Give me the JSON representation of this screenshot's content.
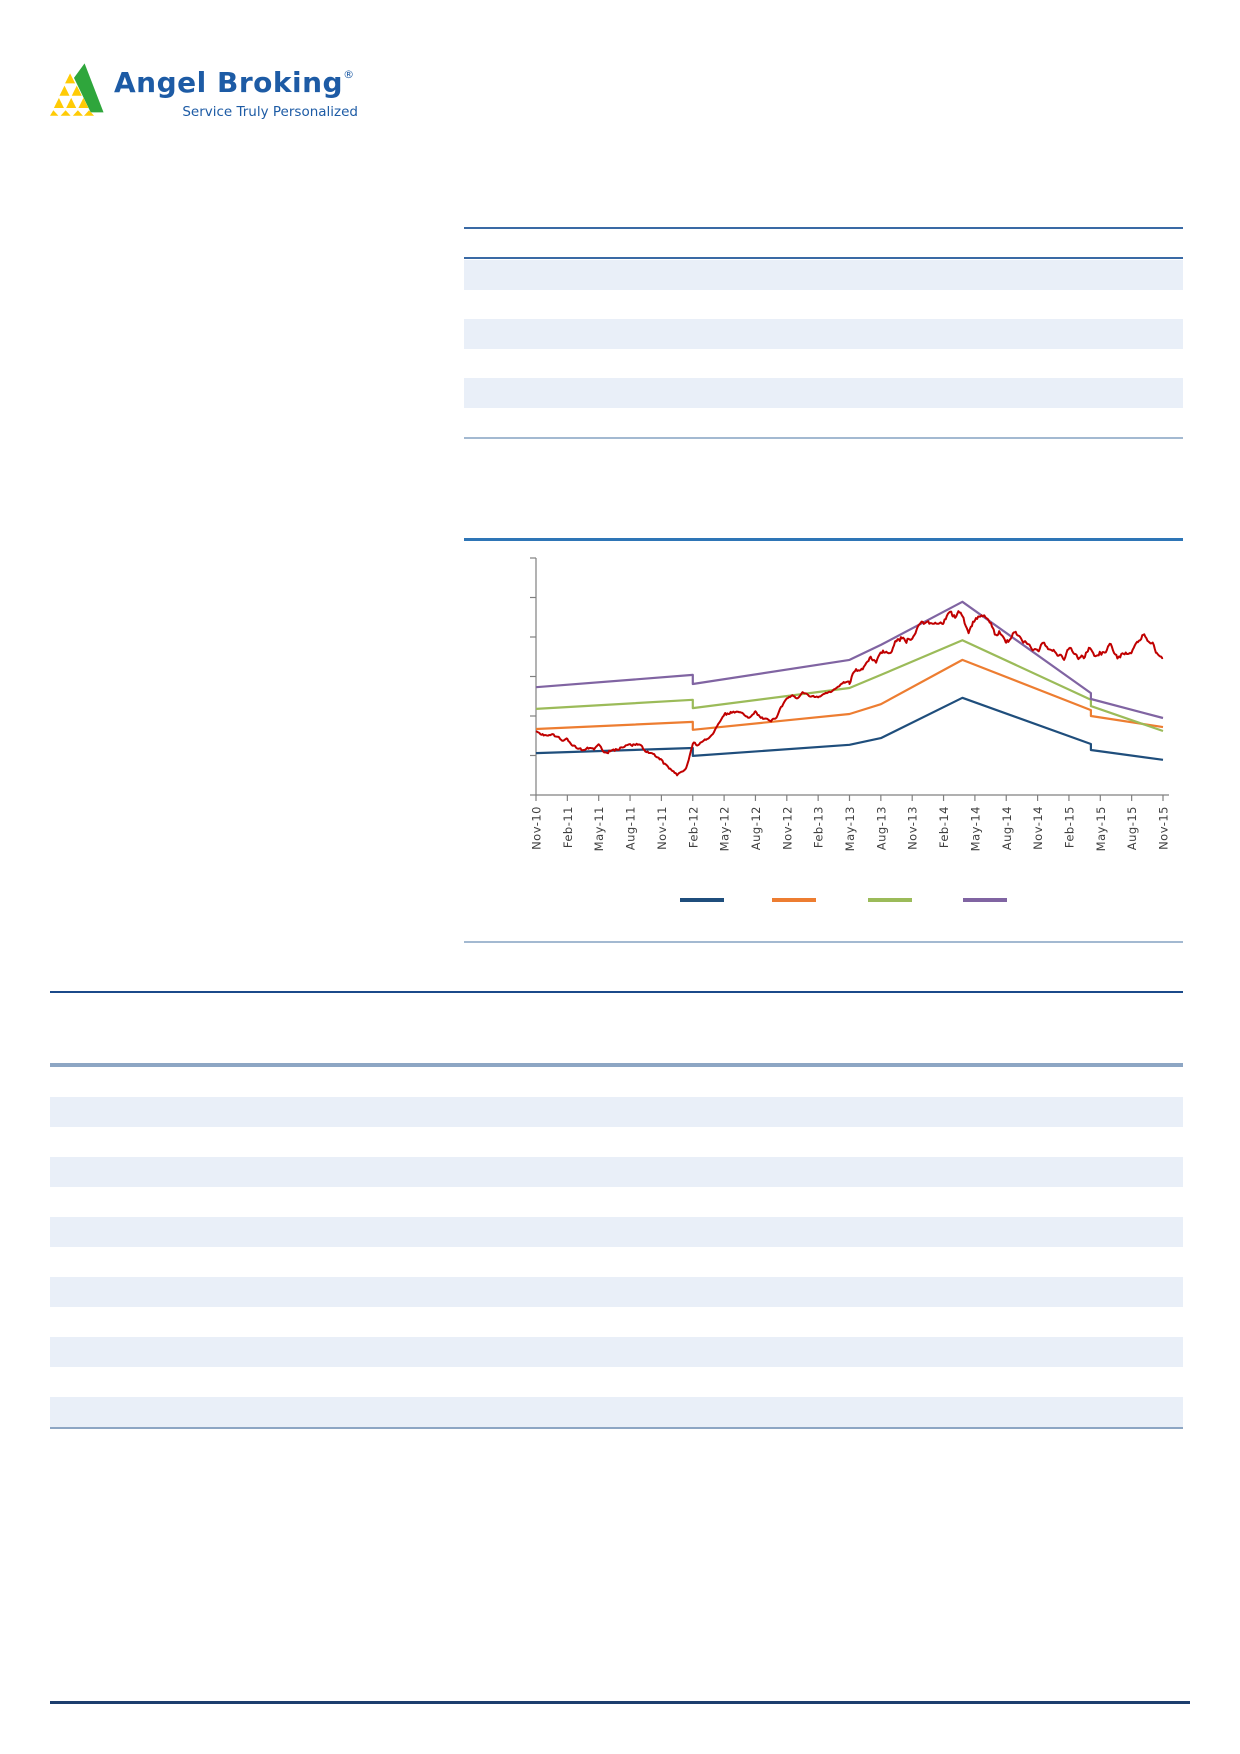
{
  "logo": {
    "brand": "Angel Broking",
    "registered": "®",
    "tagline": "Service Truly Personalized",
    "brand_color": "#1d5ba5",
    "mark_green": "#2fa63c",
    "mark_yellow": "#ffcb05"
  },
  "colors": {
    "row_shade": "#e9eff8",
    "rule_table": "#3a6aa5",
    "rule_thin_light": "#a3b9d1",
    "rule_chart_top": "#2e75b6",
    "rule_section_dark": "#1b4a8a",
    "rule_section_steel": "#8da6c4",
    "rule_footer": "#1d3e6e"
  },
  "top_table": {
    "header_row_text": "",
    "row_count": 6,
    "first_row_shaded": true
  },
  "bottom_table": {
    "header_row_text": "",
    "row_count": 11,
    "first_row_shaded": true
  },
  "chart_data": {
    "type": "line",
    "title": "",
    "xlabel": "",
    "ylabel": "",
    "x_labels": [
      "Nov-10",
      "Feb-11",
      "May-11",
      "Aug-11",
      "Nov-11",
      "Feb-12",
      "May-12",
      "Aug-12",
      "Nov-12",
      "Feb-13",
      "May-13",
      "Aug-13",
      "Nov-13",
      "Feb-14",
      "May-14",
      "Aug-14",
      "Nov-14",
      "Feb-15",
      "May-15",
      "Aug-15",
      "Nov-15"
    ],
    "ylim": [
      0,
      6
    ],
    "y_tick_count": 7,
    "y_tick_labels_visible": false,
    "grid": false,
    "axis_color": "#808080",
    "label_color": "#3f3f3f",
    "legend_position": "bottom",
    "legend_labels": [
      "",
      "",
      "",
      ""
    ],
    "series": [
      {
        "name": "band-lower",
        "color": "#1f4e7c",
        "points": [
          [
            0,
            1.06
          ],
          [
            5,
            1.19
          ],
          [
            5,
            0.99
          ],
          [
            10,
            1.27
          ],
          [
            11,
            1.44
          ],
          [
            13.6,
            2.46
          ],
          [
            17.7,
            1.29
          ],
          [
            17.7,
            1.14
          ],
          [
            20,
            0.89
          ]
        ]
      },
      {
        "name": "band-mid-low",
        "color": "#ed7d31",
        "points": [
          [
            0,
            1.67
          ],
          [
            5,
            1.85
          ],
          [
            5,
            1.65
          ],
          [
            10,
            2.05
          ],
          [
            11,
            2.3
          ],
          [
            13.6,
            3.42
          ],
          [
            17.7,
            2.15
          ],
          [
            17.7,
            2.0
          ],
          [
            20,
            1.72
          ]
        ]
      },
      {
        "name": "band-mid-high",
        "color": "#9bbb59",
        "points": [
          [
            0,
            2.18
          ],
          [
            5,
            2.41
          ],
          [
            5,
            2.2
          ],
          [
            10,
            2.71
          ],
          [
            11,
            3.04
          ],
          [
            13.6,
            3.92
          ],
          [
            17.7,
            2.41
          ],
          [
            17.7,
            2.25
          ],
          [
            20,
            1.62
          ]
        ]
      },
      {
        "name": "band-upper",
        "color": "#8064a2",
        "points": [
          [
            0,
            2.73
          ],
          [
            5,
            3.04
          ],
          [
            5,
            2.81
          ],
          [
            10,
            3.42
          ],
          [
            11,
            3.8
          ],
          [
            13.6,
            4.89
          ],
          [
            17.7,
            2.58
          ],
          [
            17.7,
            2.43
          ],
          [
            20,
            1.95
          ]
        ]
      }
    ],
    "price_series": {
      "name": "price",
      "color": "#c00000",
      "points": [
        [
          0,
          1.57
        ],
        [
          0.7,
          1.47
        ],
        [
          1,
          1.37
        ],
        [
          1.5,
          1.16
        ],
        [
          2,
          1.24
        ],
        [
          2.3,
          1.09
        ],
        [
          3,
          1.32
        ],
        [
          3.7,
          1.09
        ],
        [
          4,
          0.84
        ],
        [
          4.5,
          0.51
        ],
        [
          4.8,
          0.68
        ],
        [
          5,
          1.27
        ],
        [
          5.5,
          1.47
        ],
        [
          6,
          2.0
        ],
        [
          6.3,
          2.15
        ],
        [
          6.7,
          1.95
        ],
        [
          7,
          2.08
        ],
        [
          7.5,
          1.85
        ],
        [
          8,
          2.41
        ],
        [
          8.5,
          2.56
        ],
        [
          9,
          2.41
        ],
        [
          9.5,
          2.71
        ],
        [
          10,
          2.96
        ],
        [
          10.5,
          3.22
        ],
        [
          11,
          3.54
        ],
        [
          11.5,
          3.85
        ],
        [
          12,
          4.03
        ],
        [
          12.3,
          4.38
        ],
        [
          12.7,
          4.23
        ],
        [
          13,
          4.48
        ],
        [
          13.3,
          4.63
        ],
        [
          13.6,
          4.48
        ],
        [
          13.8,
          4.08
        ],
        [
          14,
          4.38
        ],
        [
          14.3,
          4.56
        ],
        [
          14.6,
          4.23
        ],
        [
          15,
          3.97
        ],
        [
          15.3,
          4.18
        ],
        [
          15.6,
          3.8
        ],
        [
          16,
          3.62
        ],
        [
          16.3,
          3.8
        ],
        [
          16.6,
          3.47
        ],
        [
          17,
          3.62
        ],
        [
          17.3,
          3.42
        ],
        [
          17.6,
          3.67
        ],
        [
          18,
          3.52
        ],
        [
          18.3,
          3.72
        ],
        [
          18.6,
          3.42
        ],
        [
          19,
          3.67
        ],
        [
          19.2,
          3.97
        ],
        [
          19.4,
          4.18
        ],
        [
          19.6,
          3.87
        ],
        [
          19.8,
          3.67
        ],
        [
          20,
          3.47
        ]
      ]
    }
  }
}
